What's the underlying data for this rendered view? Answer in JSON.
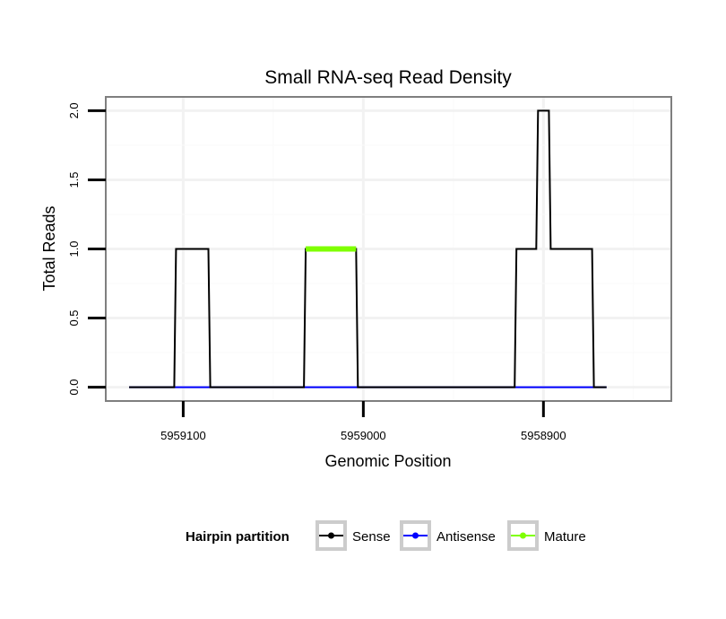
{
  "chart_data": {
    "type": "line",
    "title": "Small RNA-seq Read Density",
    "xlabel": "Genomic Position",
    "ylabel": "Total Reads",
    "x_reversed": true,
    "xlim": [
      5959143,
      5958829
    ],
    "ylim": [
      -0.1,
      2.1
    ],
    "x_ticks": [
      5959100,
      5959000,
      5958900
    ],
    "x_tick_labels": [
      "5959100",
      "5959000",
      "5958900"
    ],
    "y_ticks": [
      0,
      0.5,
      1,
      1.5,
      2
    ],
    "y_tick_labels": [
      "0.0",
      "0.5",
      "1.0",
      "1.5",
      "2.0"
    ],
    "grid": true,
    "series": [
      {
        "name": "Sense",
        "color": "#000000",
        "x": [
          5959130,
          5959105,
          5959104,
          5959086,
          5959085,
          5959033,
          5959032,
          5959004,
          5959003,
          5958916,
          5958915,
          5958904,
          5958903,
          5958897,
          5958896,
          5958889,
          5958888,
          5958873,
          5958872,
          5958865
        ],
        "y": [
          0,
          0,
          1,
          1,
          0,
          0,
          1,
          1,
          0,
          0,
          1,
          1,
          2,
          2,
          1,
          1,
          1,
          1,
          0,
          0
        ]
      },
      {
        "name": "Antisense",
        "color": "#0000ff",
        "x": [
          5959130,
          5958865
        ],
        "y": [
          0,
          0
        ]
      },
      {
        "name": "Mature",
        "color": "#7fff00",
        "x": [
          5959032,
          5959004
        ],
        "y": [
          1,
          1
        ]
      }
    ],
    "legend": {
      "title": "Hairpin partition",
      "position": "bottom",
      "entries": [
        "Sense",
        "Antisense",
        "Mature"
      ]
    }
  }
}
